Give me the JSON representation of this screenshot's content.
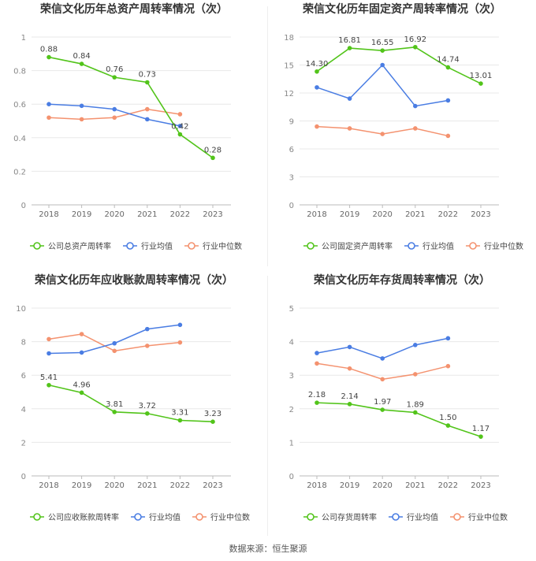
{
  "colors": {
    "company": "#52c41a",
    "industry_avg": "#4a7de3",
    "industry_median": "#f4926f",
    "axis": "#999999",
    "grid": "#e8e8e8",
    "label": "#444444",
    "title": "#333333"
  },
  "source": "数据来源：恒生聚源",
  "chart_data": [
    {
      "type": "line",
      "title": "荣信文化历年总资产周转率情况（次）",
      "categories": [
        "2018",
        "2019",
        "2020",
        "2021",
        "2022",
        "2023"
      ],
      "ylim": [
        0,
        1
      ],
      "yticks": [
        0,
        0.2,
        0.4,
        0.6,
        0.8,
        1
      ],
      "ytick_labels": [
        "0",
        "0.2",
        "0.4",
        "0.6",
        "0.8",
        "1"
      ],
      "grid": true,
      "legend_position": "bottom",
      "series": [
        {
          "name": "公司总资产周转率",
          "role": "company",
          "values": [
            0.88,
            0.84,
            0.76,
            0.73,
            0.42,
            0.28
          ],
          "labels": [
            "0.88",
            "0.84",
            "0.76",
            "0.73",
            "0.42",
            "0.28"
          ]
        },
        {
          "name": "行业均值",
          "role": "industry_avg",
          "values": [
            0.6,
            0.59,
            0.57,
            0.51,
            0.47,
            null
          ]
        },
        {
          "name": "行业中位数",
          "role": "industry_median",
          "values": [
            0.52,
            0.51,
            0.52,
            0.57,
            0.54,
            null
          ]
        }
      ]
    },
    {
      "type": "line",
      "title": "荣信文化历年固定资产周转率情况（次）",
      "categories": [
        "2018",
        "2019",
        "2020",
        "2021",
        "2022",
        "2023"
      ],
      "ylim": [
        0,
        18
      ],
      "yticks": [
        0,
        3,
        6,
        9,
        12,
        15,
        18
      ],
      "ytick_labels": [
        "0",
        "3",
        "6",
        "9",
        "12",
        "15",
        "18"
      ],
      "grid": true,
      "legend_position": "bottom",
      "series": [
        {
          "name": "公司固定资产周转率",
          "role": "company",
          "values": [
            14.3,
            16.81,
            16.55,
            16.92,
            14.74,
            13.01
          ],
          "labels": [
            "14.30",
            "16.81",
            "16.55",
            "16.92",
            "14.74",
            "13.01"
          ]
        },
        {
          "name": "行业均值",
          "role": "industry_avg",
          "values": [
            12.6,
            11.4,
            15.0,
            10.6,
            11.2,
            null
          ]
        },
        {
          "name": "行业中位数",
          "role": "industry_median",
          "values": [
            8.4,
            8.2,
            7.6,
            8.2,
            7.4,
            null
          ]
        }
      ]
    },
    {
      "type": "line",
      "title": "荣信文化历年应收账款周转率情况（次）",
      "categories": [
        "2018",
        "2019",
        "2020",
        "2021",
        "2022",
        "2023"
      ],
      "ylim": [
        0,
        10
      ],
      "yticks": [
        0,
        2,
        4,
        6,
        8,
        10
      ],
      "ytick_labels": [
        "0",
        "2",
        "4",
        "6",
        "8",
        "10"
      ],
      "grid": true,
      "legend_position": "bottom",
      "series": [
        {
          "name": "公司应收账款周转率",
          "role": "company",
          "values": [
            5.41,
            4.96,
            3.81,
            3.72,
            3.31,
            3.23
          ],
          "labels": [
            "5.41",
            "4.96",
            "3.81",
            "3.72",
            "3.31",
            "3.23"
          ]
        },
        {
          "name": "行业均值",
          "role": "industry_avg",
          "values": [
            7.3,
            7.35,
            7.9,
            8.75,
            9.0,
            null
          ]
        },
        {
          "name": "行业中位数",
          "role": "industry_median",
          "values": [
            8.15,
            8.45,
            7.45,
            7.75,
            7.95,
            null
          ]
        }
      ]
    },
    {
      "type": "line",
      "title": "荣信文化历年存货周转率情况（次）",
      "categories": [
        "2018",
        "2019",
        "2020",
        "2021",
        "2022",
        "2023"
      ],
      "ylim": [
        0,
        5
      ],
      "yticks": [
        0,
        1,
        2,
        3,
        4,
        5
      ],
      "ytick_labels": [
        "0",
        "1",
        "2",
        "3",
        "4",
        "5"
      ],
      "grid": true,
      "legend_position": "bottom",
      "series": [
        {
          "name": "公司存货周转率",
          "role": "company",
          "values": [
            2.18,
            2.14,
            1.97,
            1.89,
            1.5,
            1.17
          ],
          "labels": [
            "2.18",
            "2.14",
            "1.97",
            "1.89",
            "1.50",
            "1.17"
          ]
        },
        {
          "name": "行业均值",
          "role": "industry_avg",
          "values": [
            3.66,
            3.84,
            3.5,
            3.9,
            4.1,
            null
          ]
        },
        {
          "name": "行业中位数",
          "role": "industry_median",
          "values": [
            3.35,
            3.2,
            2.88,
            3.03,
            3.27,
            null
          ]
        }
      ]
    }
  ]
}
